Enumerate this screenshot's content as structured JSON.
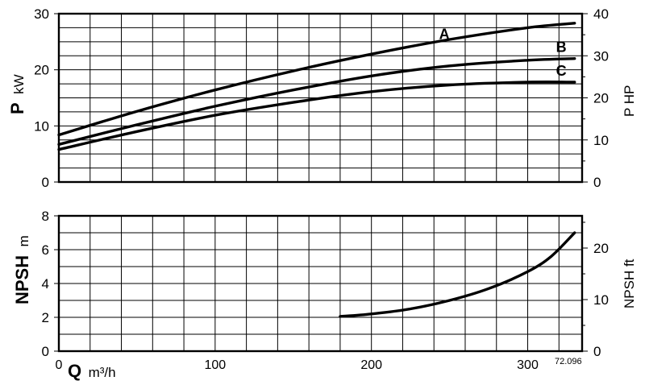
{
  "chart_data": [
    {
      "type": "line",
      "ylabel_main": "P",
      "ylabel_unit": "kW",
      "y2label": "P HP",
      "ylim": [
        0,
        30
      ],
      "y2lim": [
        0,
        40
      ],
      "xlim": [
        0,
        330
      ],
      "yticks": [
        "0",
        "10",
        "20",
        "30"
      ],
      "y2ticks": [
        "0",
        "10",
        "20",
        "30",
        "40"
      ],
      "grid": true,
      "series": [
        {
          "name": "A",
          "x": [
            0,
            50,
            100,
            150,
            200,
            250,
            300,
            330
          ],
          "values": [
            8.4,
            12.6,
            16.4,
            19.8,
            22.8,
            25.4,
            27.5,
            28.3
          ]
        },
        {
          "name": "B",
          "x": [
            0,
            50,
            100,
            150,
            200,
            250,
            300,
            330
          ],
          "values": [
            6.7,
            10.2,
            13.5,
            16.4,
            18.9,
            20.7,
            21.7,
            22.0
          ]
        },
        {
          "name": "C",
          "x": [
            0,
            50,
            100,
            150,
            200,
            250,
            300,
            330
          ],
          "values": [
            5.8,
            9.0,
            11.9,
            14.2,
            16.1,
            17.3,
            17.8,
            17.8
          ]
        }
      ]
    },
    {
      "type": "line",
      "ylabel_main": "NPSH",
      "ylabel_unit": "m",
      "y2label": "NPSH ft",
      "xlabel_main": "Q",
      "xlabel_unit": "m³/h",
      "ylim": [
        0,
        8
      ],
      "y2lim": [
        0,
        26.25
      ],
      "xlim": [
        0,
        330
      ],
      "yticks": [
        "0",
        "2",
        "4",
        "6",
        "8"
      ],
      "y2ticks": [
        "0",
        "10",
        "20"
      ],
      "xticks": [
        "0",
        "100",
        "200",
        "300"
      ],
      "grid": true,
      "series": [
        {
          "name": "",
          "x": [
            180,
            200,
            225,
            250,
            275,
            300,
            315,
            330
          ],
          "values": [
            2.05,
            2.2,
            2.5,
            3.0,
            3.7,
            4.7,
            5.6,
            7.0
          ]
        }
      ]
    }
  ],
  "ref_code": "72.096"
}
